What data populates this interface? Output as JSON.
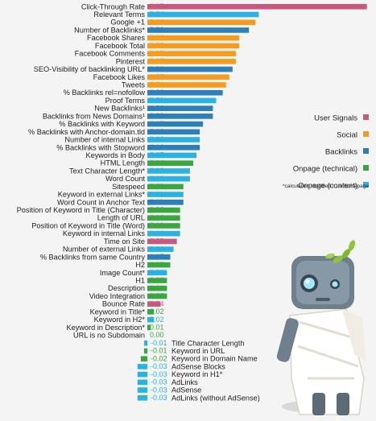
{
  "colors": {
    "User Signals": "#c9587f",
    "Social": "#f39c1f",
    "Backlinks": "#2c7fb8",
    "Onpage (technical)": "#3aa640",
    "Onpage (content)": "#29b2e3"
  },
  "chart_data": {
    "type": "bar",
    "orientation": "horizontal",
    "xlim": [
      -0.05,
      0.67
    ],
    "legend": {
      "placement": "right",
      "entries": [
        "User Signals",
        "Social",
        "Backlinks",
        "Onpage (technical)",
        "Onpage (content)"
      ]
    },
    "note": "*calculation modified   ¹...to homepage",
    "bars": [
      {
        "label": "Click-Through Rate",
        "value": 0.67,
        "value_label": "0.67",
        "category": "User Signals"
      },
      {
        "label": "Relevant Terms",
        "value": 0.34,
        "value_label": "0.34",
        "category": "Onpage (content)"
      },
      {
        "label": "Google +1",
        "value": 0.33,
        "value_label": "0.33",
        "category": "Social"
      },
      {
        "label": "Number of Backlinks*",
        "value": 0.31,
        "value_label": "0.31",
        "category": "Backlinks"
      },
      {
        "label": "Facebook Shares",
        "value": 0.28,
        "value_label": "0.28",
        "category": "Social"
      },
      {
        "label": "Facebook Total",
        "value": 0.28,
        "value_label": "0.28",
        "category": "Social"
      },
      {
        "label": "Facebook Comments",
        "value": 0.27,
        "value_label": "0.27",
        "category": "Social"
      },
      {
        "label": "Pinterest",
        "value": 0.27,
        "value_label": "0.27",
        "category": "Social"
      },
      {
        "label": "SEO-Visibility of backlinking URL*",
        "value": 0.26,
        "value_label": "0.26",
        "category": "Backlinks"
      },
      {
        "label": "Facebook Likes",
        "value": 0.25,
        "value_label": "0.25",
        "category": "Social"
      },
      {
        "label": "Tweets",
        "value": 0.24,
        "value_label": "0.24",
        "category": "Social"
      },
      {
        "label": "% Backlinks rel=nofollow",
        "value": 0.23,
        "value_label": "0.23",
        "category": "Backlinks"
      },
      {
        "label": "Proof Terms",
        "value": 0.21,
        "value_label": "0.21",
        "category": "Onpage (content)"
      },
      {
        "label": "New Backlinks¹",
        "value": 0.2,
        "value_label": "0.20",
        "category": "Backlinks"
      },
      {
        "label": "Backlinks from News Domains¹",
        "value": 0.2,
        "value_label": "0.20",
        "category": "Backlinks"
      },
      {
        "label": "% Backlinks with Keyword",
        "value": 0.17,
        "value_label": "0.17",
        "category": "Backlinks"
      },
      {
        "label": "% Backlinks with Anchor-domain.tld",
        "value": 0.16,
        "value_label": "0.16",
        "category": "Backlinks"
      },
      {
        "label": "Number of internal Links",
        "value": 0.16,
        "value_label": "0.16",
        "category": "Onpage (content)"
      },
      {
        "label": "% Backlinks with Stopword",
        "value": 0.16,
        "value_label": "0.16",
        "category": "Backlinks"
      },
      {
        "label": "Keywords in Body",
        "value": 0.15,
        "value_label": "0.15",
        "category": "Onpage (content)"
      },
      {
        "label": "HTML Length",
        "value": 0.14,
        "value_label": "0.14",
        "category": "Onpage (technical)"
      },
      {
        "label": "Text Character Length*",
        "value": 0.13,
        "value_label": "0.13",
        "category": "Onpage (content)"
      },
      {
        "label": "Word Count",
        "value": 0.13,
        "value_label": "0.13",
        "category": "Onpage (content)"
      },
      {
        "label": "Sitespeed",
        "value": 0.11,
        "value_label": "0.11",
        "category": "Onpage (technical)"
      },
      {
        "label": "Keyword in external Links*",
        "value": 0.11,
        "value_label": "0.11",
        "category": "Onpage (content)"
      },
      {
        "label": "Word Count in Anchor Text",
        "value": 0.11,
        "value_label": "0.11",
        "category": "Backlinks"
      },
      {
        "label": "Position of Keyword in Title (Character)",
        "value": 0.1,
        "value_label": "0.10",
        "category": "Onpage (technical)"
      },
      {
        "label": "Length of URL",
        "value": 0.1,
        "value_label": "0.10",
        "category": "Onpage (technical)"
      },
      {
        "label": "Position of Keyword in Title (Word)",
        "value": 0.1,
        "value_label": "0.10",
        "category": "Onpage (technical)"
      },
      {
        "label": "Keyword in internal Links",
        "value": 0.1,
        "value_label": "0.10",
        "category": "Onpage (content)"
      },
      {
        "label": "Time on Site",
        "value": 0.09,
        "value_label": "0.09",
        "category": "User Signals"
      },
      {
        "label": "Number of external Links",
        "value": 0.08,
        "value_label": "0.08",
        "category": "Onpage (content)"
      },
      {
        "label": "% Backlinks from same Country",
        "value": 0.07,
        "value_label": "0.07",
        "category": "Backlinks"
      },
      {
        "label": "H2",
        "value": 0.07,
        "value_label": "0.07",
        "category": "Onpage (technical)"
      },
      {
        "label": "Image Count*",
        "value": 0.06,
        "value_label": "0.06",
        "category": "Onpage (content)"
      },
      {
        "label": "H1",
        "value": 0.06,
        "value_label": "0.06",
        "category": "Onpage (technical)"
      },
      {
        "label": "Description",
        "value": 0.06,
        "value_label": "0.06",
        "category": "Onpage (technical)"
      },
      {
        "label": "Video Integration",
        "value": 0.06,
        "value_label": "0.06",
        "category": "Onpage (technical)"
      },
      {
        "label": "Bounce Rate",
        "value": 0.04,
        "value_label": "0.04",
        "category": "User Signals"
      },
      {
        "label": "Keyword in Title*",
        "value": 0.02,
        "value_label": "0.02",
        "category": "Onpage (technical)"
      },
      {
        "label": "Keyword in H2*",
        "value": 0.02,
        "value_label": "0.02",
        "category": "Onpage (content)"
      },
      {
        "label": "Keyword in Description*",
        "value": 0.01,
        "value_label": "0.01",
        "category": "Onpage (technical)"
      },
      {
        "label": "URL is no Subdomain",
        "value": 0.0,
        "value_label": "0.00",
        "category": "Onpage (technical)"
      },
      {
        "label": "Title Character Length",
        "value": -0.01,
        "value_label": "-0.01",
        "category": "Onpage (content)"
      },
      {
        "label": "Keyword in URL",
        "value": -0.01,
        "value_label": "-0.01",
        "category": "Onpage (technical)"
      },
      {
        "label": "Keyword in Domain Name",
        "value": -0.02,
        "value_label": "-0.02",
        "category": "Onpage (technical)"
      },
      {
        "label": "AdSense Blocks",
        "value": -0.03,
        "value_label": "-0.03",
        "category": "Onpage (content)"
      },
      {
        "label": "Keyword in H1*",
        "value": -0.03,
        "value_label": "-0.03",
        "category": "Onpage (content)"
      },
      {
        "label": "AdLinks",
        "value": -0.03,
        "value_label": "-0.03",
        "category": "Onpage (content)"
      },
      {
        "label": "AdSense",
        "value": -0.03,
        "value_label": "-0.03",
        "category": "Onpage (content)"
      },
      {
        "label": "AdLinks (without AdSense)",
        "value": -0.03,
        "value_label": "-0.03",
        "category": "Onpage (content)"
      }
    ]
  },
  "mascot": {
    "name": "robot-mascot-icon"
  }
}
